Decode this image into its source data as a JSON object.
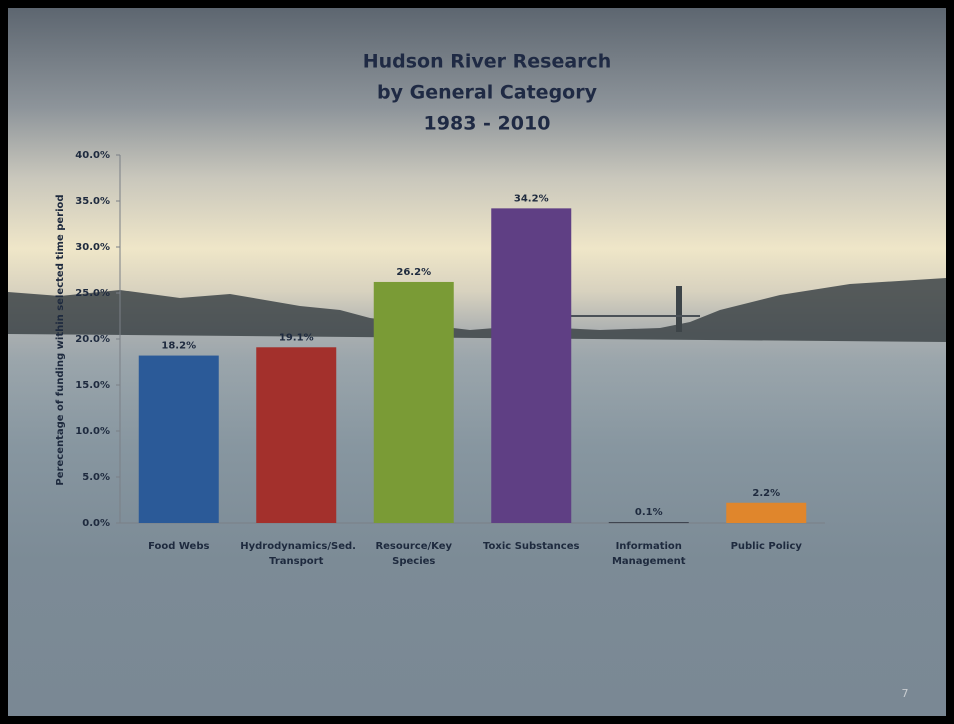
{
  "chart_data": {
    "type": "bar",
    "title": [
      "Hudson River Research",
      "by General Category",
      "1983 - 2010"
    ],
    "y_label": "Perecentage of funding within selected time period",
    "categories": [
      "Food Webs",
      "Hydrodynamics/Sed. Transport",
      "Resource/Key Species",
      "Toxic Substances",
      "Information Management",
      "Public Policy"
    ],
    "values": [
      18.2,
      19.1,
      26.2,
      34.2,
      0.1,
      2.2
    ],
    "value_labels": [
      "18.2%",
      "19.1%",
      "26.2%",
      "34.2%",
      "0.1%",
      "2.2%"
    ],
    "colors": [
      "#2b5a98",
      "#a3302c",
      "#7a9b36",
      "#5f3f84",
      "#3a3f4a",
      "#e0862c"
    ],
    "ylim": [
      0,
      40
    ],
    "yticks": [
      {
        "value": 0,
        "label": "0.0%"
      },
      {
        "value": 5,
        "label": "5.0%"
      },
      {
        "value": 10,
        "label": "10.0%"
      },
      {
        "value": 15,
        "label": "15.0%"
      },
      {
        "value": 20,
        "label": "20.0%"
      },
      {
        "value": 25,
        "label": "25.0%"
      },
      {
        "value": 30,
        "label": "30.0%"
      },
      {
        "value": 35,
        "label": "35.0%"
      },
      {
        "value": 40,
        "label": "40.0%"
      }
    ],
    "page_number": "7"
  }
}
